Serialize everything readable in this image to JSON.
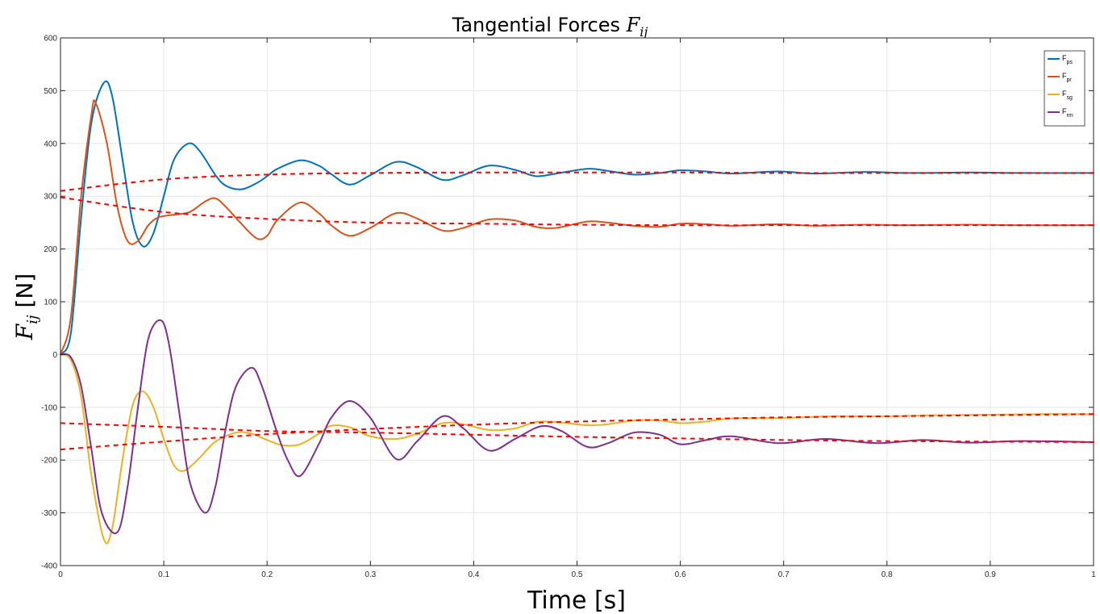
{
  "chart_data": {
    "type": "line",
    "title": {
      "text": "Tangential Forces",
      "math": "F",
      "math_subscript": "ij"
    },
    "xlabel": "Time [s]",
    "ylabel": {
      "math": "F",
      "math_subscript": "ij",
      "unit": "[N]"
    },
    "xlim": [
      0,
      1
    ],
    "ylim": [
      -400,
      600
    ],
    "xticks": [
      0,
      0.1,
      0.2,
      0.3,
      0.4,
      0.5,
      0.6,
      0.7,
      0.8,
      0.9,
      1
    ],
    "xtick_labels": [
      "0",
      "0.1",
      "0.2",
      "0.3",
      "0.4",
      "0.5",
      "0.6",
      "0.7",
      "0.8",
      "0.9",
      "1"
    ],
    "yticks": [
      -400,
      -300,
      -200,
      -100,
      0,
      100,
      200,
      300,
      400,
      500,
      600
    ],
    "ytick_labels": [
      "-400",
      "-300",
      "-200",
      "-100",
      "0",
      "100",
      "200",
      "300",
      "400",
      "500",
      "600"
    ],
    "grid": true,
    "legend_position": "top-right",
    "series": [
      {
        "name": "F",
        "subscript": "ps",
        "color": "#0072BD",
        "style": "solid",
        "x": [
          0,
          0.01,
          0.02,
          0.03,
          0.042,
          0.05,
          0.06,
          0.07,
          0.08,
          0.09,
          0.1,
          0.11,
          0.124,
          0.135,
          0.15,
          0.16,
          0.175,
          0.19,
          0.2,
          0.21,
          0.232,
          0.25,
          0.262,
          0.28,
          0.3,
          0.325,
          0.345,
          0.37,
          0.39,
          0.415,
          0.44,
          0.46,
          0.48,
          0.51,
          0.53,
          0.555,
          0.58,
          0.6,
          0.625,
          0.65,
          0.695,
          0.73,
          0.78,
          0.82,
          0.88,
          0.93,
          1
        ],
        "y": [
          0,
          40,
          260,
          440,
          515,
          490,
          370,
          250,
          205,
          230,
          300,
          370,
          400,
          385,
          340,
          320,
          313,
          325,
          338,
          352,
          368,
          358,
          342,
          322,
          340,
          365,
          355,
          331,
          340,
          358,
          350,
          338,
          343,
          352,
          348,
          341,
          344,
          349,
          347,
          343,
          347,
          343,
          346,
          344,
          345,
          344,
          344
        ]
      },
      {
        "name": "F",
        "subscript": "pr",
        "color": "#D95319",
        "style": "solid",
        "x": [
          0,
          0.01,
          0.02,
          0.03,
          0.034,
          0.045,
          0.055,
          0.065,
          0.075,
          0.085,
          0.095,
          0.11,
          0.125,
          0.14,
          0.15,
          0.16,
          0.175,
          0.19,
          0.2,
          0.21,
          0.232,
          0.25,
          0.262,
          0.28,
          0.3,
          0.325,
          0.345,
          0.37,
          0.39,
          0.415,
          0.44,
          0.46,
          0.48,
          0.51,
          0.53,
          0.555,
          0.58,
          0.6,
          0.625,
          0.65,
          0.695,
          0.73,
          0.78,
          0.82,
          0.88,
          0.93,
          1
        ],
        "y": [
          0,
          70,
          300,
          455,
          477,
          400,
          280,
          215,
          215,
          245,
          260,
          265,
          270,
          290,
          296,
          280,
          248,
          220,
          225,
          255,
          288,
          268,
          245,
          225,
          240,
          268,
          258,
          235,
          240,
          256,
          254,
          242,
          240,
          252,
          250,
          244,
          242,
          248,
          247,
          244,
          247,
          244,
          246,
          245,
          246,
          245,
          245
        ]
      },
      {
        "name": "F",
        "subscript": "sg",
        "color": "#EDB120",
        "style": "solid",
        "x": [
          0,
          0.01,
          0.02,
          0.03,
          0.042,
          0.05,
          0.06,
          0.07,
          0.08,
          0.09,
          0.1,
          0.11,
          0.12,
          0.135,
          0.15,
          0.17,
          0.185,
          0.2,
          0.215,
          0.232,
          0.25,
          0.262,
          0.28,
          0.3,
          0.325,
          0.345,
          0.37,
          0.39,
          0.415,
          0.44,
          0.46,
          0.48,
          0.51,
          0.53,
          0.555,
          0.58,
          0.6,
          0.625,
          0.65,
          0.7,
          0.75,
          0.8,
          0.85,
          0.9,
          0.95,
          1
        ],
        "y": [
          0,
          -10,
          -80,
          -230,
          -350,
          -330,
          -200,
          -95,
          -70,
          -100,
          -160,
          -210,
          -220,
          -195,
          -165,
          -148,
          -150,
          -162,
          -172,
          -170,
          -150,
          -135,
          -138,
          -155,
          -160,
          -150,
          -130,
          -132,
          -143,
          -140,
          -128,
          -128,
          -134,
          -132,
          -125,
          -125,
          -130,
          -127,
          -121,
          -120,
          -117,
          -117,
          -115,
          -114,
          -113,
          -113
        ]
      },
      {
        "name": "F",
        "subscript": "rm",
        "color": "#7E2F8E",
        "style": "solid",
        "x": [
          0,
          0.01,
          0.02,
          0.03,
          0.04,
          0.055,
          0.065,
          0.075,
          0.085,
          0.097,
          0.105,
          0.115,
          0.125,
          0.14,
          0.15,
          0.16,
          0.17,
          0.185,
          0.195,
          0.21,
          0.22,
          0.232,
          0.25,
          0.262,
          0.28,
          0.3,
          0.325,
          0.345,
          0.37,
          0.39,
          0.415,
          0.44,
          0.465,
          0.485,
          0.51,
          0.53,
          0.555,
          0.58,
          0.6,
          0.625,
          0.65,
          0.695,
          0.74,
          0.79,
          0.835,
          0.88,
          0.93,
          1
        ],
        "y": [
          0,
          -5,
          -60,
          -180,
          -300,
          -337,
          -250,
          -100,
          30,
          65,
          20,
          -110,
          -240,
          -300,
          -250,
          -140,
          -60,
          -25,
          -60,
          -150,
          -200,
          -230,
          -170,
          -120,
          -88,
          -120,
          -198,
          -165,
          -117,
          -140,
          -182,
          -160,
          -136,
          -145,
          -175,
          -168,
          -148,
          -152,
          -170,
          -162,
          -155,
          -168,
          -160,
          -168,
          -162,
          -167,
          -164,
          -166
        ]
      },
      {
        "name": "",
        "color": "#FF0000",
        "style": "dashed",
        "x": [
          0,
          0.1,
          0.2,
          0.3,
          0.4,
          0.5,
          0.6,
          0.7,
          0.8,
          0.9,
          1
        ],
        "y": [
          310,
          332,
          341,
          344,
          345,
          345,
          345,
          344,
          344,
          344,
          344
        ]
      },
      {
        "name": "",
        "color": "#FF0000",
        "style": "dashed",
        "x": [
          0,
          0.1,
          0.2,
          0.3,
          0.4,
          0.5,
          0.6,
          0.7,
          0.8,
          0.9,
          1
        ],
        "y": [
          298,
          270,
          257,
          250,
          248,
          246,
          245,
          245,
          245,
          245,
          245
        ]
      },
      {
        "name": "",
        "color": "#FF0000",
        "style": "dashed",
        "x": [
          0,
          0.1,
          0.2,
          0.3,
          0.4,
          0.5,
          0.6,
          0.7,
          0.8,
          0.9,
          1
        ],
        "y": [
          -130,
          -137,
          -145,
          -148,
          -152,
          -156,
          -159,
          -162,
          -164,
          -165,
          -166
        ]
      },
      {
        "name": "",
        "color": "#FF0000",
        "style": "dashed",
        "x": [
          0,
          0.1,
          0.2,
          0.3,
          0.4,
          0.5,
          0.6,
          0.7,
          0.8,
          0.9,
          1
        ],
        "y": [
          -180,
          -165,
          -151,
          -141,
          -133,
          -127,
          -123,
          -119,
          -117,
          -115,
          -113
        ]
      }
    ]
  }
}
